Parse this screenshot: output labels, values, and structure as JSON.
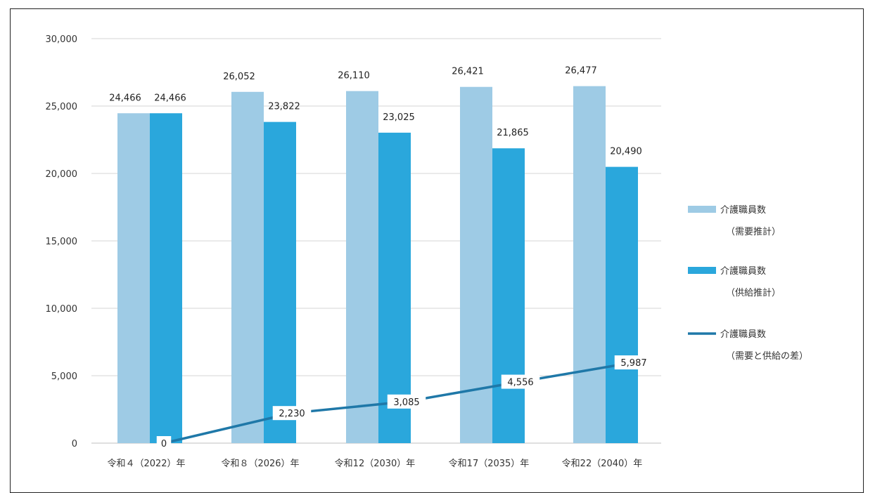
{
  "chart_data": {
    "type": "bar",
    "categories": [
      "令和４（2022）年",
      "令和８（2026）年",
      "令和12（2030）年",
      "令和17（2035）年",
      "令和22（2040）年"
    ],
    "series": [
      {
        "name": "介護職員数（需要推計）",
        "name_line1": "介護職員数",
        "name_line2": "（需要推計）",
        "type": "bar",
        "color": "#9ecbe5",
        "values": [
          24466,
          26052,
          26110,
          26421,
          26477
        ],
        "labels": [
          "24,466",
          "26,052",
          "26,110",
          "26,421",
          "26,477"
        ]
      },
      {
        "name": "介護職員数（供給推計）",
        "name_line1": "介護職員数",
        "name_line2": "（供給推計）",
        "type": "bar",
        "color": "#2aa7dc",
        "values": [
          24466,
          23822,
          23025,
          21865,
          20490
        ],
        "labels": [
          "24,466",
          "23,822",
          "23,025",
          "21,865",
          "20,490"
        ]
      },
      {
        "name": "介護職員数（需要と供給の差）",
        "name_line1": "介護職員数",
        "name_line2": "（需要と供給の差）",
        "type": "line",
        "color": "#1f78a8",
        "values": [
          0,
          2230,
          3085,
          4556,
          5987
        ],
        "labels": [
          "0",
          "2,230",
          "3,085",
          "4,556",
          "5,987"
        ]
      }
    ],
    "ylim": [
      0,
      30000
    ],
    "yticks": [
      0,
      5000,
      10000,
      15000,
      20000,
      25000,
      30000
    ],
    "ytick_labels": [
      "0",
      "5,000",
      "10,000",
      "15,000",
      "20,000",
      "25,000",
      "30,000"
    ],
    "grid": true,
    "legend_position": "right"
  }
}
